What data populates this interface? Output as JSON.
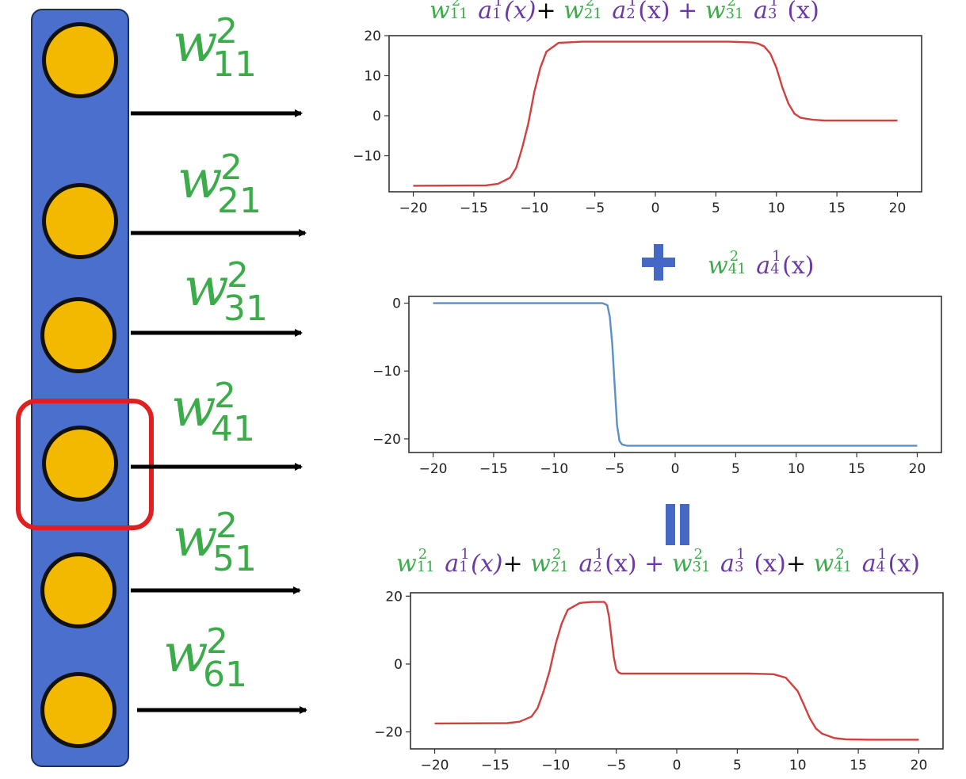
{
  "weights": [
    {
      "base": "w",
      "sup": "2",
      "sub": "11"
    },
    {
      "base": "w",
      "sup": "2",
      "sub": "21"
    },
    {
      "base": "w",
      "sup": "2",
      "sub": "31"
    },
    {
      "base": "w",
      "sup": "2",
      "sub": "41"
    },
    {
      "base": "w",
      "sup": "2",
      "sub": "51"
    },
    {
      "base": "w",
      "sup": "2",
      "sub": "61"
    }
  ],
  "formulas": {
    "top": [
      {
        "t": "w",
        "c": "g"
      },
      {
        "t": "11",
        "c": "g",
        "sub": true,
        "sup2": "2"
      },
      {
        "t": " ",
        "c": "k"
      },
      {
        "t": "a",
        "c": "pi"
      },
      {
        "t": "1",
        "c": "p",
        "sub": true,
        "sup2": "1"
      },
      {
        "t": "(x)",
        "c": "pi"
      },
      {
        "t": "+ ",
        "c": "k"
      },
      {
        "t": "w",
        "c": "g"
      },
      {
        "t": "21",
        "c": "g",
        "sub": true,
        "sup2": "2"
      },
      {
        "t": " ",
        "c": "k"
      },
      {
        "t": "a",
        "c": "pi"
      },
      {
        "t": "2",
        "c": "p",
        "sub": true,
        "sup2": "1"
      },
      {
        "t": "(x) + ",
        "c": "p"
      },
      {
        "t": "w",
        "c": "g"
      },
      {
        "t": "31",
        "c": "g",
        "sub": true,
        "sup2": "2"
      },
      {
        "t": " ",
        "c": "k"
      },
      {
        "t": "a",
        "c": "pi"
      },
      {
        "t": "3",
        "c": "p",
        "sub": true,
        "sup2": "1"
      },
      {
        "t": " (x)",
        "c": "p"
      }
    ],
    "middle": [
      {
        "t": "w",
        "c": "g"
      },
      {
        "t": "41",
        "c": "g",
        "sub": true,
        "sup2": "2"
      },
      {
        "t": " ",
        "c": "k"
      },
      {
        "t": "a",
        "c": "pi"
      },
      {
        "t": "4",
        "c": "p",
        "sub": true,
        "sup2": "1"
      },
      {
        "t": "(x)",
        "c": "p"
      }
    ],
    "bottom": [
      {
        "t": "w",
        "c": "g"
      },
      {
        "t": "11",
        "c": "g",
        "sub": true,
        "sup2": "2"
      },
      {
        "t": " ",
        "c": "k"
      },
      {
        "t": "a",
        "c": "pi"
      },
      {
        "t": "1",
        "c": "p",
        "sub": true,
        "sup2": "1"
      },
      {
        "t": "(x)",
        "c": "pi"
      },
      {
        "t": "+ ",
        "c": "k"
      },
      {
        "t": "w",
        "c": "g"
      },
      {
        "t": "21",
        "c": "g",
        "sub": true,
        "sup2": "2"
      },
      {
        "t": " ",
        "c": "k"
      },
      {
        "t": "a",
        "c": "pi"
      },
      {
        "t": "2",
        "c": "p",
        "sub": true,
        "sup2": "1"
      },
      {
        "t": "(x) + ",
        "c": "p"
      },
      {
        "t": "w",
        "c": "g"
      },
      {
        "t": "31",
        "c": "g",
        "sub": true,
        "sup2": "2"
      },
      {
        "t": " ",
        "c": "k"
      },
      {
        "t": "a",
        "c": "pi"
      },
      {
        "t": "3",
        "c": "p",
        "sub": true,
        "sup2": "1"
      },
      {
        "t": " (x)",
        "c": "p"
      },
      {
        "t": "+ ",
        "c": "k"
      },
      {
        "t": "w",
        "c": "g"
      },
      {
        "t": "41",
        "c": "g",
        "sub": true,
        "sup2": "2"
      },
      {
        "t": " ",
        "c": "k"
      },
      {
        "t": "a",
        "c": "pi"
      },
      {
        "t": "4",
        "c": "p",
        "sub": true,
        "sup2": "1"
      },
      {
        "t": "(x)",
        "c": "p"
      }
    ]
  },
  "operators": {
    "plus": "+",
    "equals": "="
  },
  "colors": {
    "neuron_column": "#4a6fcd",
    "neuron": "#f3b800",
    "highlight": "#e02020",
    "weight_green": "#3cab4a",
    "activation_purple": "#6a3aa2",
    "red_curve": "#d1403f",
    "blue_curve": "#5b8fcb",
    "operator_blue": "#4468c4"
  },
  "chart_data": [
    {
      "type": "line",
      "title": "",
      "xlabel": "",
      "ylabel": "",
      "xlim": [
        -22,
        22
      ],
      "ylim": [
        -19,
        20
      ],
      "xticks": [
        -20,
        -15,
        -10,
        -5,
        0,
        5,
        10,
        15,
        20
      ],
      "yticks": [
        20,
        10,
        0,
        -10
      ],
      "series": [
        {
          "color": "#d1403f",
          "x": [
            -20,
            -14,
            -13,
            -12,
            -11.5,
            -11,
            -10.5,
            -10,
            -9.5,
            -9,
            -8,
            -6,
            -3,
            0,
            3,
            6,
            8,
            8.5,
            9,
            9.5,
            10,
            10.5,
            11,
            11.5,
            12,
            13,
            14,
            16,
            18,
            20
          ],
          "y": [
            -17.5,
            -17.4,
            -17,
            -15.5,
            -13,
            -8,
            -2,
            6,
            12,
            16,
            18.2,
            18.5,
            18.5,
            18.5,
            18.5,
            18.5,
            18.3,
            18,
            17.3,
            15.5,
            12,
            7,
            3,
            0.5,
            -0.5,
            -1,
            -1.2,
            -1.2,
            -1.2,
            -1.2
          ]
        }
      ]
    },
    {
      "type": "line",
      "title": "",
      "xlabel": "",
      "ylabel": "",
      "xlim": [
        -22,
        22
      ],
      "ylim": [
        -22,
        1
      ],
      "xticks": [
        -20,
        -15,
        -10,
        -5,
        0,
        5,
        10,
        15,
        20
      ],
      "yticks": [
        0,
        -10,
        -20
      ],
      "series": [
        {
          "color": "#5b8fcb",
          "x": [
            -20,
            -8,
            -6,
            -5.6,
            -5.4,
            -5.2,
            -5,
            -4.8,
            -4.6,
            -4.4,
            -4,
            -3,
            0,
            5,
            10,
            15,
            20
          ],
          "y": [
            0,
            0,
            0,
            -0.3,
            -2,
            -6,
            -12,
            -18,
            -20.3,
            -20.8,
            -21,
            -21,
            -21,
            -21,
            -21,
            -21,
            -21
          ]
        }
      ]
    },
    {
      "type": "line",
      "title": "",
      "xlabel": "",
      "ylabel": "",
      "xlim": [
        -22,
        22
      ],
      "ylim": [
        -25,
        21
      ],
      "xticks": [
        -20,
        -15,
        -10,
        -5,
        0,
        5,
        10,
        15,
        20
      ],
      "yticks": [
        20,
        0,
        -20
      ],
      "series": [
        {
          "color": "#d1403f",
          "x": [
            -20,
            -14,
            -13,
            -12,
            -11.5,
            -11,
            -10.5,
            -10,
            -9.5,
            -9,
            -8,
            -7,
            -6,
            -5.8,
            -5.6,
            -5.4,
            -5.2,
            -5,
            -4.8,
            -4.6,
            -4,
            0,
            6,
            8,
            9,
            10,
            10.5,
            11,
            11.5,
            12,
            13,
            14,
            16,
            20
          ],
          "y": [
            -17.5,
            -17.4,
            -17,
            -15.5,
            -13,
            -8,
            -2,
            6,
            12,
            16,
            18,
            18.3,
            18.3,
            17.5,
            14,
            8,
            2,
            -1.5,
            -2.5,
            -2.8,
            -2.8,
            -2.8,
            -2.8,
            -3,
            -4,
            -8,
            -12,
            -16,
            -19,
            -20.5,
            -21.8,
            -22.2,
            -22.3,
            -22.3
          ]
        }
      ]
    }
  ]
}
